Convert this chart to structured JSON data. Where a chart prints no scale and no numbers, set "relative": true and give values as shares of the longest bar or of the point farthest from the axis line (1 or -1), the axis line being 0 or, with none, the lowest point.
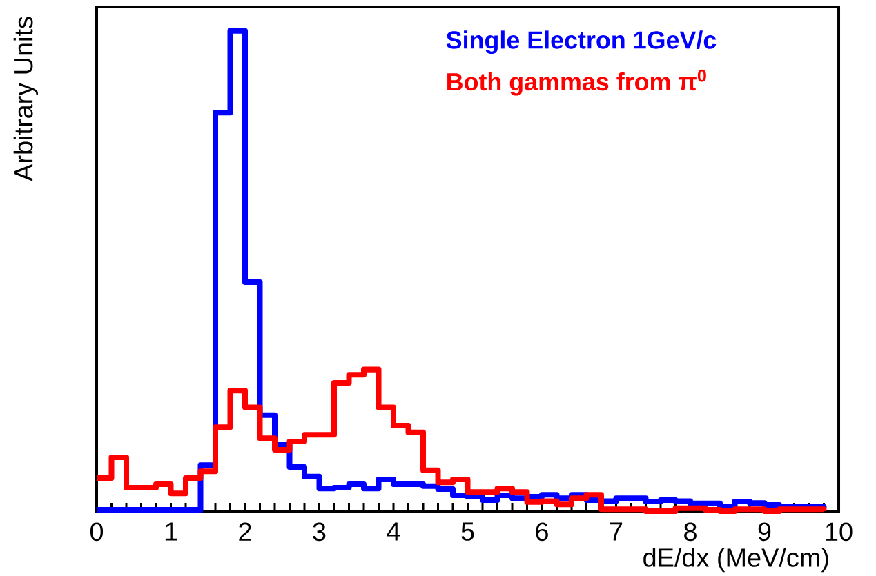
{
  "chart_data": {
    "type": "step",
    "relative": true,
    "xlabel": "dE/dx (MeV/cm)",
    "ylabel": "Arbitrary Units",
    "x": [
      0,
      0.2,
      0.4,
      0.6,
      0.8,
      1.0,
      1.2,
      1.4,
      1.6,
      1.8,
      2.0,
      2.2,
      2.4,
      2.6,
      2.8,
      3.0,
      3.2,
      3.4,
      3.6,
      3.8,
      4.0,
      4.2,
      4.4,
      4.6,
      4.8,
      5.0,
      5.2,
      5.4,
      5.6,
      5.8,
      6.0,
      6.2,
      6.4,
      6.6,
      6.8,
      7.0,
      7.2,
      7.4,
      7.6,
      7.8,
      8.0,
      8.2,
      8.4,
      8.6,
      8.8,
      9.0,
      9.2,
      9.4,
      9.6,
      9.8
    ],
    "series": [
      {
        "name": "Single Electron 1GeV/c",
        "color": "#0000ff",
        "values": [
          0.003,
          0.003,
          0.003,
          0.003,
          0.003,
          0.003,
          0.003,
          0.096,
          0.83,
          1.0,
          0.477,
          0.2,
          0.138,
          0.092,
          0.072,
          0.047,
          0.049,
          0.056,
          0.047,
          0.066,
          0.056,
          0.056,
          0.052,
          0.046,
          0.033,
          0.03,
          0.023,
          0.033,
          0.027,
          0.03,
          0.034,
          0.027,
          0.034,
          0.023,
          0.021,
          0.027,
          0.027,
          0.02,
          0.023,
          0.021,
          0.016,
          0.016,
          0.01,
          0.02,
          0.017,
          0.013,
          0.009,
          0.009,
          0.009,
          0.006
        ]
      },
      {
        "name": "Both gammas from π$^{0}$",
        "color": "#ff0000",
        "values": [
          0.069,
          0.112,
          0.049,
          0.049,
          0.056,
          0.037,
          0.069,
          0.083,
          0.175,
          0.251,
          0.216,
          0.152,
          0.128,
          0.145,
          0.159,
          0.159,
          0.267,
          0.284,
          0.295,
          0.216,
          0.178,
          0.164,
          0.085,
          0.06,
          0.066,
          0.04,
          0.04,
          0.047,
          0.04,
          0.019,
          0.021,
          0.014,
          0.027,
          0.034,
          0.004,
          0.004,
          0.004,
          0,
          0,
          0.006,
          0.006,
          0.003,
          0,
          0.004,
          0.004,
          0,
          0.004,
          0.004,
          0.004,
          0
        ]
      }
    ],
    "xlim": [
      0,
      10
    ],
    "xticks": [
      {
        "value": 0,
        "label": "0"
      },
      {
        "value": 1,
        "label": "1"
      },
      {
        "value": 2,
        "label": "2"
      },
      {
        "value": 3,
        "label": "3"
      },
      {
        "value": 4,
        "label": "4"
      },
      {
        "value": 5,
        "label": "5"
      },
      {
        "value": 6,
        "label": "6"
      },
      {
        "value": 7,
        "label": "7"
      },
      {
        "value": 8,
        "label": "8"
      },
      {
        "value": 9,
        "label": "9"
      },
      {
        "value": 10,
        "label": "10"
      }
    ]
  }
}
